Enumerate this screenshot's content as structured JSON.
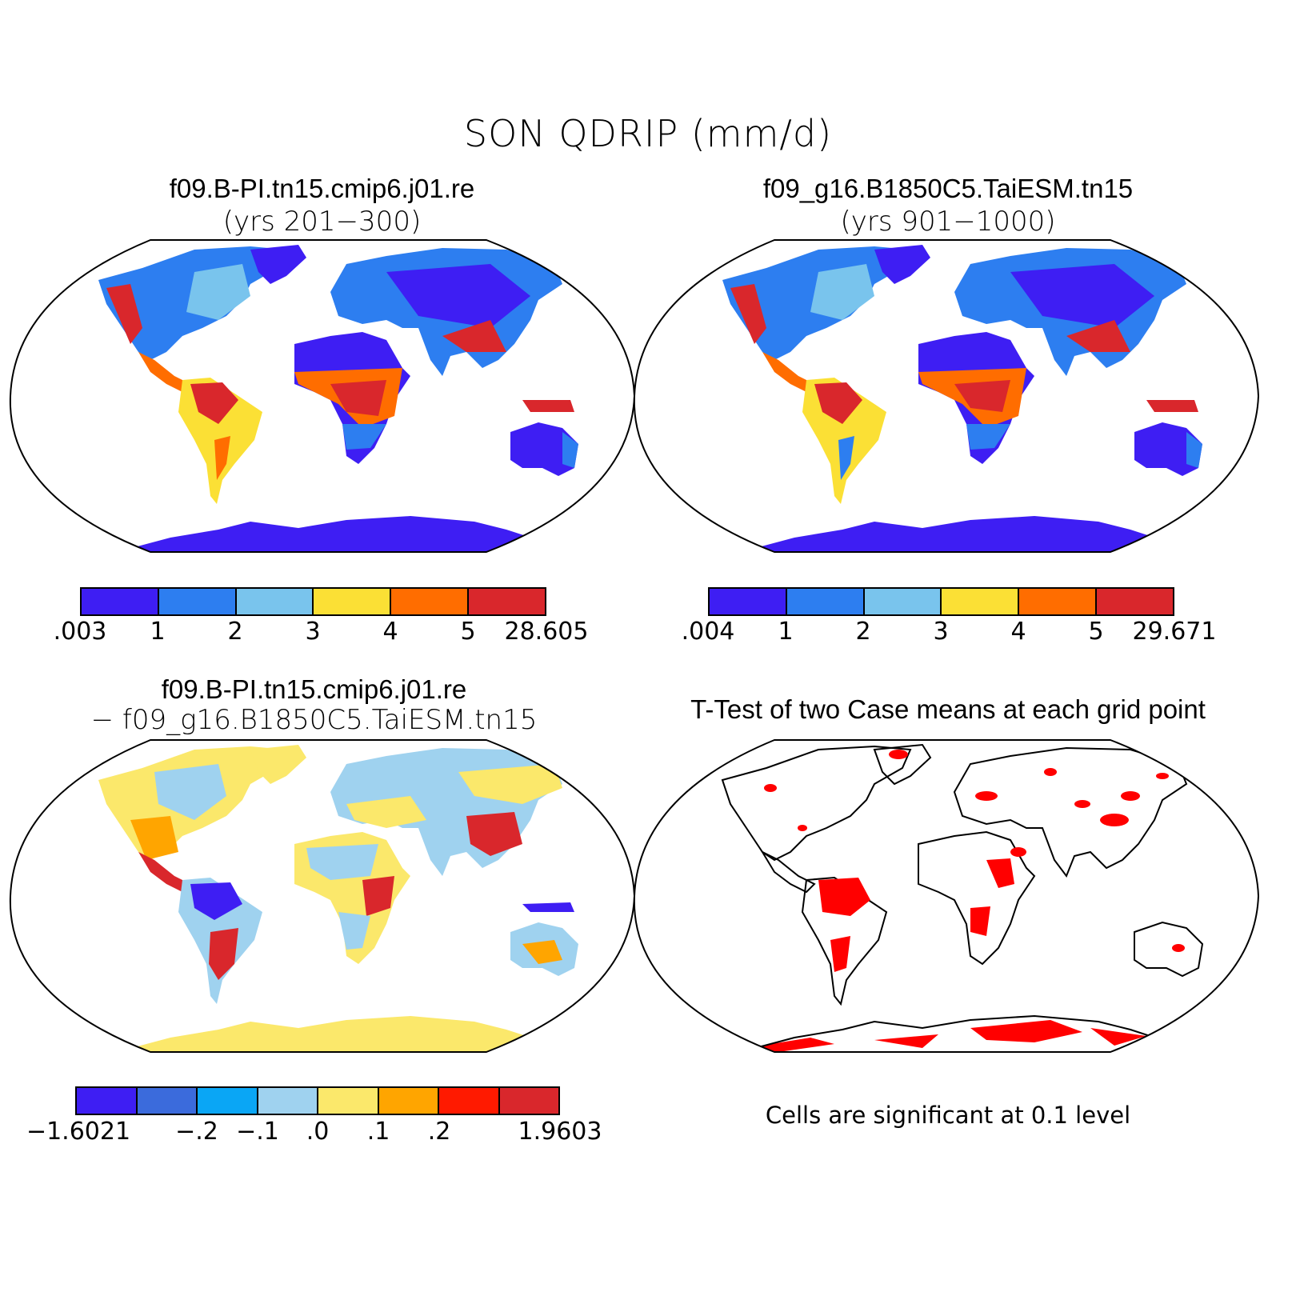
{
  "figure": {
    "title": "SON QDRIP (mm/d)"
  },
  "panels": [
    {
      "title": "f09.B-PI.tn15.cmip6.j01.re",
      "subtitle": "(yrs 201−300)",
      "colorbar": {
        "colors": [
          "#3e1ef3",
          "#2d7ef0",
          "#79c4ed",
          "#fbe035",
          "#ff6d00",
          "#d9272c"
        ],
        "ticks": [
          ".003",
          "1",
          "2",
          "3",
          "4",
          "5",
          "28.605"
        ]
      }
    },
    {
      "title": "f09_g16.B1850C5.TaiESM.tn15",
      "subtitle": "(yrs 901−1000)",
      "colorbar": {
        "colors": [
          "#3e1ef3",
          "#2d7ef0",
          "#79c4ed",
          "#fbe035",
          "#ff6d00",
          "#d9272c"
        ],
        "ticks": [
          ".004",
          "1",
          "2",
          "3",
          "4",
          "5",
          "29.671"
        ]
      }
    },
    {
      "title": "f09.B-PI.tn15.cmip6.j01.re",
      "subtitle": "− f09_g16.B1850C5.TaiESM.tn15",
      "colorbar": {
        "colors": [
          "#3e1ef3",
          "#3b6bdc",
          "#0aa6f5",
          "#9fd2ef",
          "#fbe86b",
          "#ffa500",
          "#ff1a00",
          "#d9272c"
        ],
        "ticks": [
          "−1.6021",
          "",
          "−.2",
          "−.1",
          ".0",
          ".1",
          ".2",
          "",
          "1.9603"
        ]
      }
    },
    {
      "title": "T-Test of two Case means at each grid point",
      "note": "Cells are significant at 0.1 level",
      "significance_color": "#ff0000"
    }
  ]
}
